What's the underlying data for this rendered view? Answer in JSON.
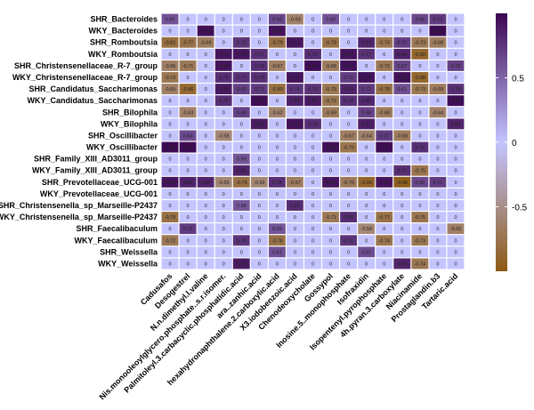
{
  "chart_data": {
    "type": "heatmap",
    "title": "",
    "xlabel": "",
    "ylabel": "",
    "rows": [
      "SHR_Bacteroides",
      "WKY_Bacteroides",
      "SHR_Romboutsia",
      "WKY_Romboutsia",
      "SHR_Christensenellaceae_R-7_group",
      "WKY_Christensenellaceae_R-7_group",
      "SHR_Candidatus_Saccharimonas",
      "WKY_Candidatus_Saccharimonas",
      "SHR_Bilophila",
      "WKY_Bilophila",
      "SHR_Oscillibacter",
      "WKY_Oscillibacter",
      "SHR_Family_XIII_AD3011_group",
      "WKY_Family_XIII_AD3011_group",
      "SHR_Prevotellaceae_UCG-001",
      "WKY_Prevotellaceae_UCG-001",
      "SHR_Christensenella_sp_Marseille-P2437",
      "WKY_Christensenella_sp_Marseille-P2437",
      "SHR_Faecalibaculum",
      "WKY_Faecalibaculum",
      "SHR_Weissella",
      "WKY_Weissella"
    ],
    "columns": [
      "Cadusafos",
      "Desogestrel",
      "N.n.dimethyl.l.valine",
      "Nis.monooleoylglycero.phosphate..s.r.isomer.",
      "Palmitoleyl.3.carbacyclic.phosphatidic.acid",
      "ara..zanhic.acid",
      "hexahydronaphthalene.2.carboxylic.acid",
      "X3.iodobenzoic.acid",
      "Chenodeoxycholate",
      "Gossypol",
      "Inosine.5..monophosphate",
      "Isofraxidin",
      "Isopentenyl.pyrophosphate",
      "4h.pyran.3.carboxylate",
      "Niacinamide",
      "Prostaglandin.b3",
      "Tartaric.acid"
    ],
    "values": [
      [
        0.6,
        0,
        0,
        0,
        0,
        0,
        0.66,
        -0.63,
        0,
        0.6,
        0,
        0,
        0,
        0,
        0.66,
        0.72,
        0
      ],
      [
        0,
        0,
        0.95,
        0,
        0,
        0,
        0.93,
        0,
        0,
        0,
        0,
        0,
        0,
        0,
        0,
        0.98,
        0
      ],
      [
        -0.82,
        -0.77,
        -0.69,
        0,
        0.75,
        0,
        -0.79,
        0.91,
        0,
        -0.78,
        0,
        0.83,
        -0.74,
        0.7,
        -0.73,
        -0.68,
        0
      ],
      [
        0,
        0,
        0,
        0.91,
        0.91,
        0.77,
        0,
        0,
        0.79,
        0,
        0.92,
        0.77,
        0,
        0.84,
        -0.9,
        0,
        0
      ],
      [
        -0.65,
        -0.71,
        0,
        0.92,
        0,
        0.78,
        -0.67,
        0,
        0.96,
        -0.68,
        0.94,
        0,
        -0.72,
        0.67,
        0,
        0,
        0.7
      ],
      [
        -0.73,
        0,
        0,
        0.79,
        0.77,
        0.78,
        0,
        0.92,
        0,
        0,
        0.71,
        0.94,
        0,
        0.95,
        -0.88,
        0,
        0
      ],
      [
        -0.65,
        -0.86,
        0,
        0.9,
        0.69,
        0.72,
        -0.8,
        0.74,
        0.76,
        -0.73,
        0.84,
        0.72,
        -0.78,
        0.61,
        -0.73,
        -0.69,
        0.78
      ],
      [
        0,
        0,
        0,
        0.79,
        0,
        0.97,
        0,
        0.86,
        0.89,
        -0.73,
        0.78,
        0.82,
        0,
        0,
        0,
        0,
        0.96
      ],
      [
        0,
        -0.63,
        0,
        0,
        0.69,
        0,
        -0.62,
        0,
        0,
        -0.69,
        0,
        0.68,
        -0.68,
        0,
        0,
        -0.64,
        0
      ],
      [
        0,
        0,
        0,
        0,
        0,
        0.88,
        0,
        0.93,
        0.78,
        0,
        0,
        0.87,
        0,
        0,
        0,
        0,
        0.84
      ],
      [
        0,
        0.64,
        0,
        -0.58,
        0,
        0,
        0,
        0,
        0,
        0,
        -0.67,
        -0.64,
        0.72,
        -0.68,
        0,
        0,
        0
      ],
      [
        0.98,
        0.97,
        0,
        0,
        0,
        0,
        0,
        0,
        0,
        0.95,
        -0.75,
        0,
        0.97,
        0,
        0.78,
        0,
        0
      ],
      [
        0,
        0,
        0,
        0,
        0.59,
        0,
        0,
        0,
        0,
        0,
        0,
        0,
        0,
        0,
        0,
        0,
        0
      ],
      [
        0,
        0,
        0,
        0,
        0.85,
        0,
        0,
        0,
        0,
        0,
        0,
        0,
        0,
        0.79,
        -0.75,
        0,
        0
      ],
      [
        0.93,
        0.85,
        0.84,
        -0.59,
        -0.79,
        -0.59,
        0.78,
        -0.67,
        0,
        0.92,
        -0.7,
        -0.9,
        0.92,
        -0.96,
        0.66,
        0.71,
        0
      ],
      [
        0,
        0,
        0,
        0,
        0,
        0,
        0,
        0,
        0,
        0,
        0,
        0,
        0,
        0,
        0,
        0,
        0
      ],
      [
        0,
        0,
        0,
        0,
        0.58,
        0,
        0,
        0.8,
        0,
        0,
        0,
        0,
        0,
        0,
        0,
        0,
        0
      ],
      [
        -0.79,
        0,
        0,
        0,
        0,
        0,
        0,
        0,
        0,
        -0.71,
        0.8,
        0,
        -0.77,
        0,
        -0.75,
        0,
        0
      ],
      [
        0,
        0.72,
        0,
        0,
        0,
        0,
        0.59,
        0,
        0,
        0,
        0,
        -0.58,
        0,
        0,
        0,
        0,
        -0.65
      ],
      [
        -0.72,
        0,
        0,
        0,
        0.76,
        0,
        -0.78,
        0,
        0,
        0,
        0.76,
        0,
        -0.74,
        0,
        -0.73,
        0,
        0
      ],
      [
        0,
        0,
        0,
        0,
        0,
        0,
        0.61,
        0,
        0,
        0,
        0,
        0.62,
        0,
        0,
        0,
        0,
        0
      ],
      [
        0,
        0,
        0,
        0,
        0.89,
        0,
        0,
        0,
        0,
        0,
        0,
        0,
        0,
        0.84,
        -0.74,
        0,
        0
      ]
    ],
    "value_range": [
      -1,
      1
    ],
    "colorbar": {
      "ticks": [
        0.5,
        0,
        -0.5
      ],
      "tick_labels": [
        "0.5",
        "0",
        "-0.5"
      ],
      "colors": {
        "low": "#8c5a14",
        "mid": "#c4c4ff",
        "high": "#3b0650"
      }
    },
    "legend_position": "right",
    "cell_labels_shown": true
  }
}
